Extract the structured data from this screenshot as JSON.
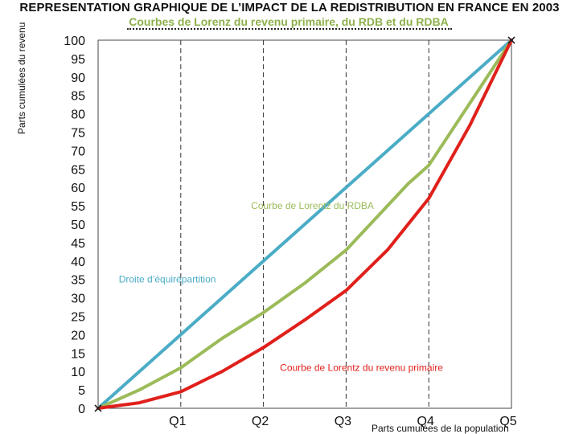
{
  "chart_data": {
    "type": "line",
    "title": "REPRESENTATION GRAPHIQUE DE L’IMPACT DE LA REDISTRIBUTION EN FRANCE EN 2003",
    "subtitle": "Courbes de Lorenz du revenu primaire, du RDB et du RDBA",
    "ylabel": "Parts cumulées du revenu",
    "xlabel": "Parts cumulées de la population",
    "x_categories": [
      "",
      "Q1",
      "Q2",
      "Q3",
      "Q4",
      "Q5"
    ],
    "y_ticks": [
      0,
      5,
      10,
      15,
      20,
      25,
      30,
      35,
      40,
      45,
      50,
      55,
      60,
      65,
      70,
      75,
      80,
      85,
      90,
      95,
      100
    ],
    "ylim": [
      0,
      100
    ],
    "xlim": [
      0,
      100
    ],
    "series": [
      {
        "color": "#4bacc6",
        "x": [
          0,
          20,
          40,
          60,
          80,
          100
        ],
        "values": [
          0,
          20,
          40,
          60,
          80,
          100
        ]
      },
      {
        "color": "#9bbb59",
        "x": [
          0,
          10,
          20,
          30,
          40,
          50,
          60,
          70,
          75,
          80,
          90,
          100
        ],
        "values": [
          0,
          5,
          11,
          19,
          26,
          34,
          43,
          55,
          61,
          66,
          83,
          100
        ]
      },
      {
        "color": "#e0201b",
        "x": [
          0,
          10,
          20,
          30,
          40,
          50,
          60,
          70,
          80,
          90,
          100
        ],
        "values": [
          0,
          1.5,
          4.5,
          10,
          16.5,
          24,
          32,
          43,
          57,
          77,
          100
        ]
      }
    ],
    "annotations": [
      {
        "text": "Droite d’équirépartition",
        "x": 5,
        "y": 35,
        "color": "#4bacc6"
      },
      {
        "text": "Courbe de Lorentz du RDBA",
        "x": 37,
        "y": 55,
        "color": "#9bbb59"
      },
      {
        "text": "Courbe de Lorentz du revenu primaire",
        "x": 44,
        "y": 11,
        "color": "#e0201b"
      }
    ],
    "grid": "vertical dashed"
  }
}
